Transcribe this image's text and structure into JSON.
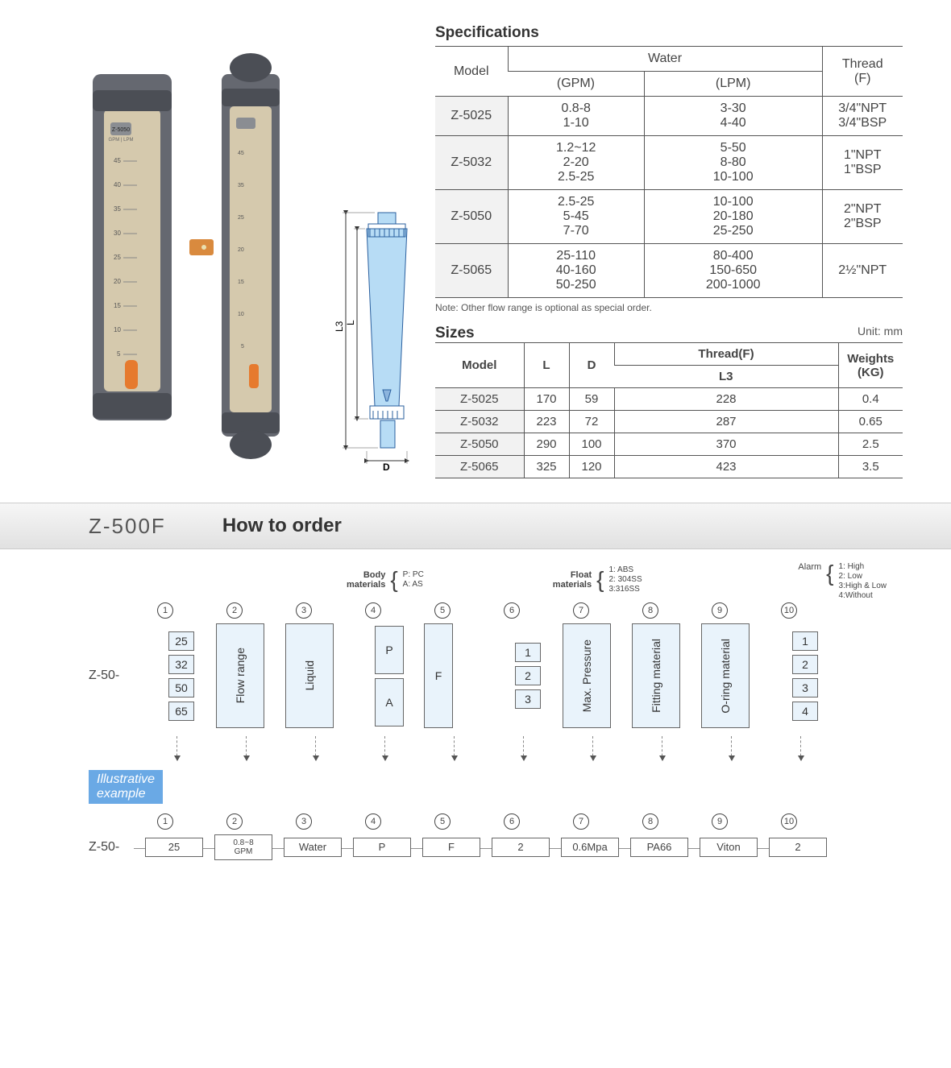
{
  "specifications": {
    "title": "Specifications",
    "headers": {
      "model": "Model",
      "water": "Water",
      "gpm": "(GPM)",
      "lpm": "(LPM)",
      "thread": "Thread\n(F)"
    },
    "rows": [
      {
        "model": "Z-5025",
        "gpm": "0.8-8\n1-10",
        "lpm": "3-30\n4-40",
        "thread": "3/4\"NPT\n3/4\"BSP"
      },
      {
        "model": "Z-5032",
        "gpm": "1.2~12\n2-20\n2.5-25",
        "lpm": "5-50\n8-80\n10-100",
        "thread": "1\"NPT\n1\"BSP"
      },
      {
        "model": "Z-5050",
        "gpm": "2.5-25\n5-45\n7-70",
        "lpm": "10-100\n20-180\n25-250",
        "thread": "2\"NPT\n2\"BSP"
      },
      {
        "model": "Z-5065",
        "gpm": "25-110\n40-160\n50-250",
        "lpm": "80-400\n150-650\n200-1000",
        "thread": "2½\"NPT"
      }
    ],
    "note": "Note: Other flow range is optional as special order."
  },
  "sizes": {
    "title": "Sizes",
    "unit": "Unit: mm",
    "headers": {
      "model": "Model",
      "l": "L",
      "d": "D",
      "threadf": "Thread(F)",
      "l3": "L3",
      "weights": "Weights\n(KG)"
    },
    "rows": [
      {
        "model": "Z-5025",
        "l": "170",
        "d": "59",
        "l3": "228",
        "w": "0.4"
      },
      {
        "model": "Z-5032",
        "l": "223",
        "d": "72",
        "l3": "287",
        "w": "0.65"
      },
      {
        "model": "Z-5050",
        "l": "290",
        "d": "100",
        "l3": "370",
        "w": "2.5"
      },
      {
        "model": "Z-5065",
        "l": "325",
        "d": "120",
        "l3": "423",
        "w": "3.5"
      }
    ]
  },
  "banner": {
    "model": "Z-500F",
    "howto": "How to order"
  },
  "order": {
    "legend": {
      "body": {
        "label": "Body\nmaterials",
        "opts": [
          "P: PC",
          "A: AS"
        ]
      },
      "float": {
        "label": "Float\nmaterials",
        "opts": [
          "1: ABS",
          "2: 304SS",
          "3:316SS"
        ]
      },
      "alarm": {
        "label": "Alarm",
        "opts": [
          "1: High",
          "2: Low",
          "3:High & Low",
          "4:Without"
        ]
      }
    },
    "circles": [
      "1",
      "2",
      "3",
      "4",
      "5",
      "6",
      "7",
      "8",
      "9",
      "10"
    ],
    "cols": [
      {
        "type": "stack",
        "items": [
          "25",
          "32",
          "50",
          "65"
        ]
      },
      {
        "type": "wide",
        "text": "Flow range"
      },
      {
        "type": "wide",
        "text": "Liquid"
      },
      {
        "type": "stack2",
        "items": [
          "P",
          "A"
        ]
      },
      {
        "type": "full",
        "text": "F"
      },
      {
        "type": "stack",
        "items": [
          "1",
          "2",
          "3"
        ]
      },
      {
        "type": "wide",
        "text": "Max. Pressure"
      },
      {
        "type": "wide",
        "text": "Fitting material"
      },
      {
        "type": "wide",
        "text": "O-ring material"
      },
      {
        "type": "stack",
        "items": [
          "1",
          "2",
          "3",
          "4"
        ]
      }
    ],
    "prefix": "Z-50-",
    "illustrative": "Illustrative\nexample",
    "example": {
      "prefix": "Z-50-",
      "values": [
        "25",
        "0.8~8\nGPM",
        "Water",
        "P",
        "F",
        "2",
        "0.6Mpa",
        "PA66",
        "Viton",
        "2"
      ]
    }
  },
  "drawing": {
    "l": "L",
    "l3": "L3",
    "d": "D"
  },
  "colors": {
    "cell_bg": "#f2f2f2",
    "box_bg": "#e9f3fb",
    "banner_top": "#f6f6f6",
    "banner_bottom": "#e1e1e1",
    "blue": "#6aa9e5",
    "border": "#555555"
  }
}
